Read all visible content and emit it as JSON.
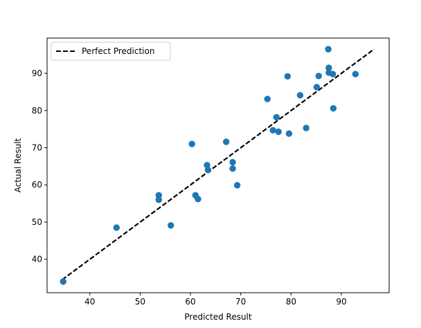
{
  "chart_data": {
    "type": "scatter",
    "title": "",
    "xlabel": "Predicted Result",
    "ylabel": "Actual Result",
    "xlim": [
      31.5,
      99.5
    ],
    "ylim": [
      31.0,
      99.5
    ],
    "xticks": [
      40,
      50,
      60,
      70,
      80,
      90
    ],
    "yticks": [
      40,
      50,
      60,
      70,
      80,
      90
    ],
    "grid": false,
    "legend_position": "top-left",
    "marker_color": "#1f77b4",
    "line_color": "#000000",
    "reference_line": {
      "label": "Perfect Prediction",
      "style": "dashed",
      "x": [
        34.5,
        96.5
      ],
      "y": [
        34.5,
        96.5
      ]
    },
    "points": [
      {
        "x": 34.7,
        "y": 34.0
      },
      {
        "x": 45.3,
        "y": 48.5
      },
      {
        "x": 53.7,
        "y": 57.2
      },
      {
        "x": 53.7,
        "y": 56.0
      },
      {
        "x": 56.1,
        "y": 49.1
      },
      {
        "x": 60.3,
        "y": 71.0
      },
      {
        "x": 61.0,
        "y": 57.2
      },
      {
        "x": 61.5,
        "y": 56.2
      },
      {
        "x": 63.3,
        "y": 65.3
      },
      {
        "x": 63.5,
        "y": 64.0
      },
      {
        "x": 67.1,
        "y": 71.6
      },
      {
        "x": 68.4,
        "y": 66.1
      },
      {
        "x": 68.4,
        "y": 64.4
      },
      {
        "x": 69.3,
        "y": 59.9
      },
      {
        "x": 75.3,
        "y": 83.1
      },
      {
        "x": 76.4,
        "y": 74.7
      },
      {
        "x": 77.1,
        "y": 78.2
      },
      {
        "x": 77.5,
        "y": 74.3
      },
      {
        "x": 79.3,
        "y": 89.2
      },
      {
        "x": 79.6,
        "y": 73.8
      },
      {
        "x": 81.8,
        "y": 84.1
      },
      {
        "x": 83.0,
        "y": 75.3
      },
      {
        "x": 85.1,
        "y": 86.3
      },
      {
        "x": 85.5,
        "y": 89.3
      },
      {
        "x": 87.4,
        "y": 96.5
      },
      {
        "x": 87.5,
        "y": 90.2
      },
      {
        "x": 87.5,
        "y": 91.5
      },
      {
        "x": 88.3,
        "y": 89.8
      },
      {
        "x": 88.4,
        "y": 80.6
      },
      {
        "x": 92.8,
        "y": 89.8
      }
    ]
  }
}
